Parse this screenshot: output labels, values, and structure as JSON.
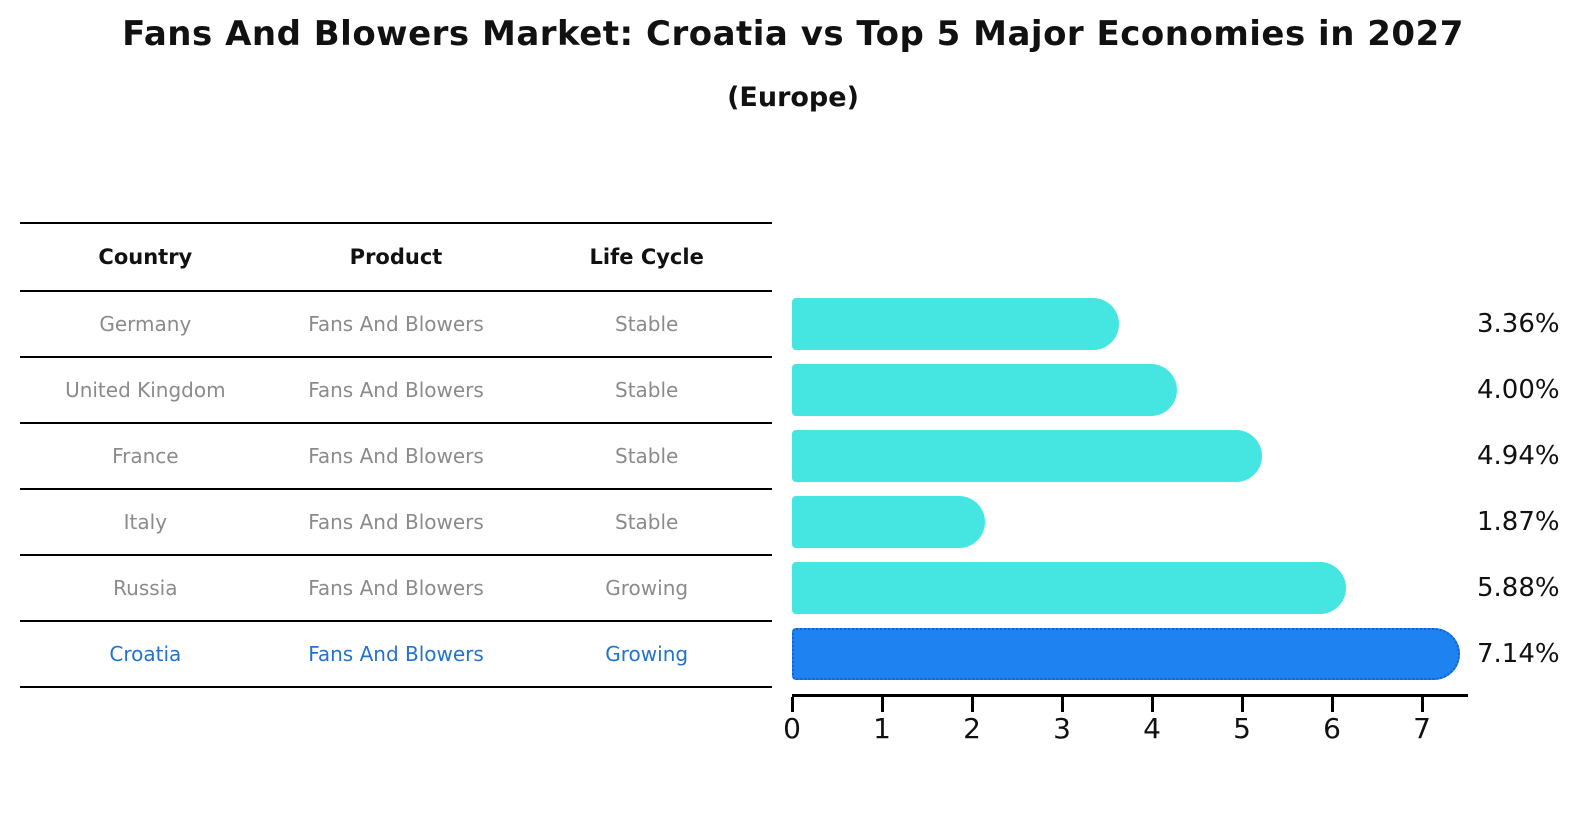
{
  "title": "Fans And Blowers Market: Croatia vs Top 5 Major Economies in 2027",
  "subtitle": "(Europe)",
  "table": {
    "headers": [
      "Country",
      "Product",
      "Life Cycle"
    ],
    "rows": [
      {
        "country": "Germany",
        "product": "Fans And Blowers",
        "life_cycle": "Stable",
        "highlight": false
      },
      {
        "country": "United Kingdom",
        "product": "Fans And Blowers",
        "life_cycle": "Stable",
        "highlight": false
      },
      {
        "country": "France",
        "product": "Fans And Blowers",
        "life_cycle": "Stable",
        "highlight": false
      },
      {
        "country": "Italy",
        "product": "Fans And Blowers",
        "life_cycle": "Stable",
        "highlight": false
      },
      {
        "country": "Russia",
        "product": "Fans And Blowers",
        "life_cycle": "Growing",
        "highlight": false
      },
      {
        "country": "Croatia",
        "product": "Fans And Blowers",
        "life_cycle": "Growing",
        "highlight": true
      }
    ]
  },
  "chart_data": {
    "type": "bar",
    "orientation": "horizontal",
    "title": "Fans And Blowers Market: Croatia vs Top 5 Major Economies in 2027 (Europe)",
    "categories": [
      "Germany",
      "United Kingdom",
      "France",
      "Italy",
      "Russia",
      "Croatia"
    ],
    "values": [
      3.36,
      4.0,
      4.94,
      1.87,
      5.88,
      7.14
    ],
    "value_labels": [
      "3.36%",
      "4.00%",
      "4.94%",
      "1.87%",
      "5.88%",
      "7.14%"
    ],
    "x_ticks": [
      0,
      1,
      2,
      3,
      4,
      5,
      6,
      7
    ],
    "xlim": [
      0,
      7.5
    ],
    "grid": false,
    "legend": null,
    "bar_color": "#45E6E2",
    "highlight_bar_color": "#1E82F0",
    "highlight_border_color": "#135fd3",
    "highlight_index": 5,
    "highlight_text_color": "#2373cd",
    "row_text_color": "#8b8b8b"
  }
}
